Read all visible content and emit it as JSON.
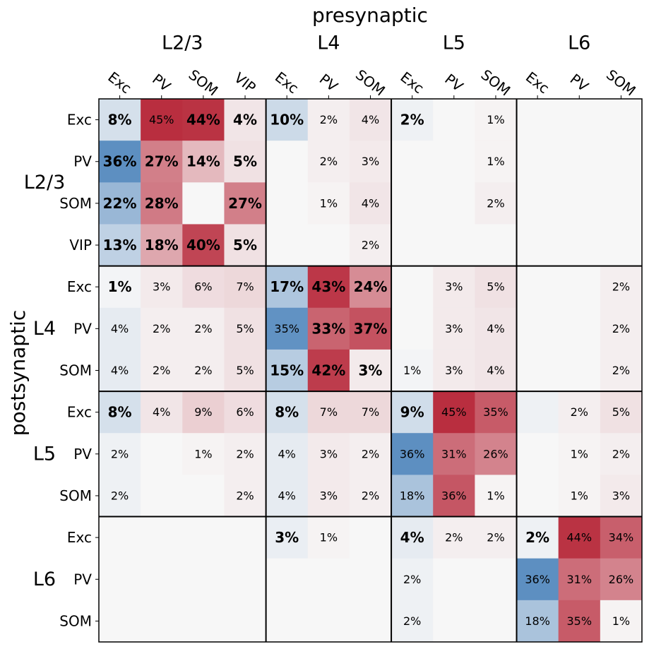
{
  "chart_data": {
    "type": "heatmap",
    "xlabel": "presynaptic",
    "ylabel": "postsynaptic",
    "col_groups": [
      {
        "name": "L2/3",
        "types": [
          "Exc",
          "PV",
          "SOM",
          "VIP"
        ]
      },
      {
        "name": "L4",
        "types": [
          "Exc",
          "PV",
          "SOM"
        ]
      },
      {
        "name": "L5",
        "types": [
          "Exc",
          "PV",
          "SOM"
        ]
      },
      {
        "name": "L6",
        "types": [
          "Exc",
          "PV",
          "SOM"
        ]
      }
    ],
    "row_groups": [
      {
        "name": "L2/3",
        "types": [
          "Exc",
          "PV",
          "SOM",
          "VIP"
        ]
      },
      {
        "name": "L4",
        "types": [
          "Exc",
          "PV",
          "SOM"
        ]
      },
      {
        "name": "L5",
        "types": [
          "Exc",
          "PV",
          "SOM"
        ]
      },
      {
        "name": "L6",
        "types": [
          "Exc",
          "PV",
          "SOM"
        ]
      }
    ],
    "values": [
      [
        -8,
        45,
        44,
        4,
        -10,
        2,
        4,
        -2,
        null,
        1,
        null,
        null,
        null
      ],
      [
        -36,
        27,
        14,
        5,
        null,
        2,
        3,
        null,
        null,
        1,
        null,
        null,
        null
      ],
      [
        -22,
        28,
        null,
        27,
        null,
        1,
        4,
        null,
        null,
        2,
        null,
        null,
        null
      ],
      [
        -13,
        18,
        40,
        5,
        null,
        null,
        2,
        null,
        null,
        null,
        null,
        null,
        null
      ],
      [
        -1,
        3,
        6,
        7,
        -17,
        43,
        24,
        null,
        3,
        5,
        null,
        null,
        2
      ],
      [
        -4,
        2,
        2,
        5,
        -35,
        33,
        37,
        null,
        3,
        4,
        null,
        null,
        2
      ],
      [
        -4,
        2,
        2,
        5,
        -15,
        42,
        3,
        -1,
        3,
        4,
        null,
        null,
        2
      ],
      [
        -8,
        4,
        9,
        6,
        -8,
        7,
        7,
        -9,
        45,
        35,
        -2,
        2,
        5
      ],
      [
        -2,
        null,
        1,
        2,
        -4,
        3,
        2,
        -36,
        31,
        26,
        null,
        1,
        2
      ],
      [
        -2,
        null,
        null,
        2,
        -4,
        3,
        2,
        -18,
        36,
        1,
        null,
        1,
        3
      ],
      [
        null,
        null,
        null,
        null,
        -3,
        1,
        null,
        -4,
        2,
        2,
        -2,
        44,
        34
      ],
      [
        null,
        null,
        null,
        null,
        null,
        null,
        null,
        -2,
        null,
        null,
        -36,
        31,
        26
      ],
      [
        null,
        null,
        null,
        null,
        null,
        null,
        null,
        -2,
        null,
        null,
        -18,
        35,
        1
      ]
    ],
    "cell_text": [
      [
        "8%",
        "45%",
        "44%",
        "4%",
        "10%",
        "2%",
        "4%",
        "2%",
        "",
        "1%",
        "",
        "",
        ""
      ],
      [
        "36%",
        "27%",
        "14%",
        "5%",
        "",
        "2%",
        "3%",
        "",
        "",
        "1%",
        "",
        "",
        ""
      ],
      [
        "22%",
        "28%",
        "",
        "27%",
        "",
        "1%",
        "4%",
        "",
        "",
        "2%",
        "",
        "",
        ""
      ],
      [
        "13%",
        "18%",
        "40%",
        "5%",
        "",
        "",
        "2%",
        "",
        "",
        "",
        "",
        "",
        ""
      ],
      [
        "1%",
        "3%",
        "6%",
        "7%",
        "17%",
        "43%",
        "24%",
        "",
        "3%",
        "5%",
        "",
        "",
        "2%"
      ],
      [
        "4%",
        "2%",
        "2%",
        "5%",
        "35%",
        "33%",
        "37%",
        "",
        "3%",
        "4%",
        "",
        "",
        "2%"
      ],
      [
        "4%",
        "2%",
        "2%",
        "5%",
        "15%",
        "42%",
        "3%",
        "1%",
        "3%",
        "4%",
        "",
        "",
        "2%"
      ],
      [
        "8%",
        "4%",
        "9%",
        "6%",
        "8%",
        "7%",
        "7%",
        "9%",
        "45%",
        "35%",
        "",
        "2%",
        "5%"
      ],
      [
        "2%",
        "",
        "1%",
        "2%",
        "4%",
        "3%",
        "2%",
        "36%",
        "31%",
        "26%",
        "",
        "1%",
        "2%"
      ],
      [
        "2%",
        "",
        "",
        "2%",
        "4%",
        "3%",
        "2%",
        "18%",
        "36%",
        "1%",
        "",
        "1%",
        "3%"
      ],
      [
        "",
        "",
        "",
        "",
        "3%",
        "1%",
        "",
        "4%",
        "2%",
        "2%",
        "2%",
        "44%",
        "34%"
      ],
      [
        "",
        "",
        "",
        "",
        "",
        "",
        "",
        "2%",
        "",
        "",
        "36%",
        "31%",
        "26%"
      ],
      [
        "",
        "",
        "",
        "",
        "",
        "",
        "",
        "2%",
        "",
        "",
        "18%",
        "35%",
        "1%"
      ]
    ],
    "bold": [
      [
        1,
        0,
        1,
        1,
        1,
        0,
        0,
        1,
        0,
        0,
        0,
        0,
        0
      ],
      [
        1,
        1,
        1,
        1,
        0,
        0,
        0,
        0,
        0,
        0,
        0,
        0,
        0
      ],
      [
        1,
        1,
        0,
        1,
        0,
        0,
        0,
        0,
        0,
        0,
        0,
        0,
        0
      ],
      [
        1,
        1,
        1,
        1,
        0,
        0,
        0,
        0,
        0,
        0,
        0,
        0,
        0
      ],
      [
        1,
        0,
        0,
        0,
        1,
        1,
        1,
        0,
        0,
        0,
        0,
        0,
        0
      ],
      [
        0,
        0,
        0,
        0,
        0,
        1,
        1,
        0,
        0,
        0,
        0,
        0,
        0
      ],
      [
        0,
        0,
        0,
        0,
        1,
        1,
        1,
        0,
        0,
        0,
        0,
        0,
        0
      ],
      [
        1,
        0,
        0,
        0,
        1,
        0,
        0,
        1,
        0,
        0,
        0,
        0,
        0
      ],
      [
        0,
        0,
        0,
        0,
        0,
        0,
        0,
        0,
        0,
        0,
        0,
        0,
        0
      ],
      [
        0,
        0,
        0,
        0,
        0,
        0,
        0,
        0,
        0,
        0,
        0,
        0,
        0
      ],
      [
        0,
        0,
        0,
        0,
        1,
        0,
        0,
        1,
        0,
        0,
        1,
        0,
        0
      ],
      [
        0,
        0,
        0,
        0,
        0,
        0,
        0,
        0,
        0,
        0,
        0,
        0,
        0
      ],
      [
        0,
        0,
        0,
        0,
        0,
        0,
        0,
        0,
        0,
        0,
        0,
        0,
        0
      ]
    ],
    "color_scale": {
      "type": "diverging",
      "range": [
        -50,
        50
      ],
      "negative_color": "#2166ac",
      "mid_color": "#f7f7f7",
      "positive_color": "#b2182b"
    },
    "grid": false
  }
}
